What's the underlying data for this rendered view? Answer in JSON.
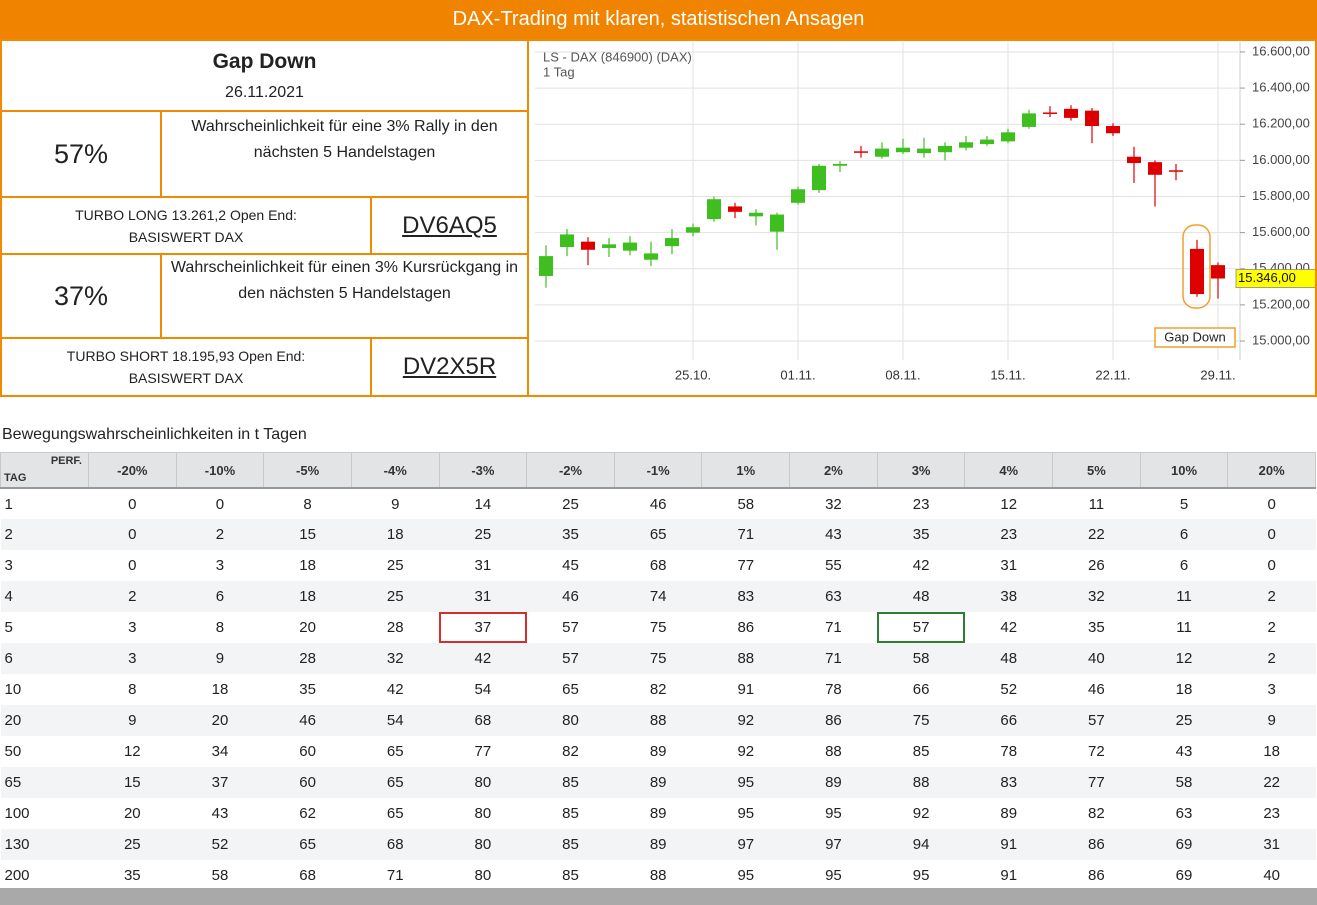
{
  "header": {
    "title": "DAX-Trading mit klaren, statistischen Ansagen"
  },
  "signal": {
    "title": "Gap Down",
    "date": "26.11.2021"
  },
  "long": {
    "probability": "57%",
    "description": "Wahrscheinlichkeit für eine 3% Rally in den nächsten 5 Handelstagen",
    "product": "TURBO LONG 13.261,2 Open End:",
    "underlying": "BASISWERT DAX",
    "code": "DV6AQ5"
  },
  "short": {
    "probability": "37%",
    "description": "Wahrscheinlichkeit für einen 3% Kursrückgang in den nächsten 5 Handelstagen",
    "product": "TURBO SHORT 18.195,93 Open End:",
    "underlying": "BASISWERT DAX",
    "code": "DV2X5R"
  },
  "chart_data": {
    "type": "candlestick",
    "title": "LS - DAX (846900) (DAX)",
    "subtitle": "1 Tag",
    "categories": [
      null,
      null,
      null,
      null,
      null,
      null,
      null,
      "25.10.",
      null,
      null,
      null,
      null,
      "01.11.",
      null,
      null,
      null,
      null,
      "08.11.",
      null,
      null,
      null,
      null,
      "15.11.",
      null,
      null,
      null,
      null,
      "22.11.",
      null,
      null,
      null,
      null,
      "29.11."
    ],
    "open": [
      15360,
      15520,
      15550,
      15515,
      15500,
      15450,
      15525,
      15600,
      15675,
      15745,
      15690,
      15605,
      15765,
      15835,
      15970,
      16050,
      16020,
      16045,
      16040,
      16045,
      16070,
      16090,
      16105,
      16185,
      16265,
      16285,
      16275,
      16190,
      16020,
      15990,
      15945,
      15510,
      15420
    ],
    "high": [
      15530,
      15620,
      15575,
      15570,
      15580,
      15550,
      15620,
      15650,
      15800,
      15765,
      15730,
      15710,
      15855,
      15980,
      15995,
      16080,
      16100,
      16120,
      16125,
      16100,
      16135,
      16135,
      16175,
      16280,
      16300,
      16305,
      16290,
      16205,
      16075,
      16000,
      15980,
      15560,
      15435
    ],
    "low": [
      15295,
      15470,
      15420,
      15465,
      15475,
      15415,
      15480,
      15580,
      15660,
      15680,
      15640,
      15505,
      15755,
      15820,
      15935,
      16015,
      16010,
      16035,
      16015,
      16000,
      16055,
      16080,
      16095,
      16175,
      16240,
      16220,
      16095,
      16135,
      15875,
      15745,
      15890,
      15245,
      15235
    ],
    "close": [
      15470,
      15590,
      15505,
      15535,
      15545,
      15485,
      15570,
      15630,
      15785,
      15715,
      15710,
      15700,
      15840,
      15970,
      15980,
      16045,
      16065,
      16070,
      16065,
      16080,
      16100,
      16115,
      16155,
      16260,
      16260,
      16235,
      16190,
      16150,
      15985,
      15920,
      15940,
      15260,
      15346
    ],
    "up_color": "#3fbf1f",
    "down_color": "#dd0000",
    "ylim": [
      14895,
      16655
    ],
    "yticks": [
      {
        "value": 15000,
        "label": "15.000,00"
      },
      {
        "value": 15200,
        "label": "15.200,00"
      },
      {
        "value": 15400,
        "label": "15.400,00"
      },
      {
        "value": 15600,
        "label": "15.600,00"
      },
      {
        "value": 15800,
        "label": "15.800,00"
      },
      {
        "value": 16000,
        "label": "16.000,00"
      },
      {
        "value": 16200,
        "label": "16.200,00"
      },
      {
        "value": 16400,
        "label": "16.400,00"
      },
      {
        "value": 16600,
        "label": "16.600,00"
      }
    ],
    "grid": true,
    "last_price": {
      "value": 15346,
      "label": "15.346,00"
    },
    "annotation": "Gap Down"
  },
  "table": {
    "title": "Bewegungswahrscheinlichkeiten in t Tagen",
    "corner_top": "PERF.",
    "corner_bottom": "TAG",
    "columns": [
      "-20%",
      "-10%",
      "-5%",
      "-4%",
      "-3%",
      "-2%",
      "-1%",
      "1%",
      "2%",
      "3%",
      "4%",
      "5%",
      "10%",
      "20%"
    ],
    "rows": [
      {
        "tag": 1,
        "values": [
          0,
          0,
          8,
          9,
          14,
          25,
          46,
          58,
          32,
          23,
          12,
          11,
          5,
          0
        ]
      },
      {
        "tag": 2,
        "values": [
          0,
          2,
          15,
          18,
          25,
          35,
          65,
          71,
          43,
          35,
          23,
          22,
          6,
          0
        ]
      },
      {
        "tag": 3,
        "values": [
          0,
          3,
          18,
          25,
          31,
          45,
          68,
          77,
          55,
          42,
          31,
          26,
          6,
          0
        ]
      },
      {
        "tag": 4,
        "values": [
          2,
          6,
          18,
          25,
          31,
          46,
          74,
          83,
          63,
          48,
          38,
          32,
          11,
          2
        ]
      },
      {
        "tag": 5,
        "values": [
          3,
          8,
          20,
          28,
          37,
          57,
          75,
          86,
          71,
          57,
          42,
          35,
          11,
          2
        ]
      },
      {
        "tag": 6,
        "values": [
          3,
          9,
          28,
          32,
          42,
          57,
          75,
          88,
          71,
          58,
          48,
          40,
          12,
          2
        ]
      },
      {
        "tag": 10,
        "values": [
          8,
          18,
          35,
          42,
          54,
          65,
          82,
          91,
          78,
          66,
          52,
          46,
          18,
          3
        ]
      },
      {
        "tag": 20,
        "values": [
          9,
          20,
          46,
          54,
          68,
          80,
          88,
          92,
          86,
          75,
          66,
          57,
          25,
          9
        ]
      },
      {
        "tag": 50,
        "values": [
          12,
          34,
          60,
          65,
          77,
          82,
          89,
          92,
          88,
          85,
          78,
          72,
          43,
          18
        ]
      },
      {
        "tag": 65,
        "values": [
          15,
          37,
          60,
          65,
          80,
          85,
          89,
          95,
          89,
          88,
          83,
          77,
          58,
          22
        ]
      },
      {
        "tag": 100,
        "values": [
          20,
          43,
          62,
          65,
          80,
          85,
          89,
          95,
          95,
          92,
          89,
          82,
          63,
          23
        ]
      },
      {
        "tag": 130,
        "values": [
          25,
          52,
          65,
          68,
          80,
          85,
          89,
          97,
          97,
          94,
          91,
          86,
          69,
          31
        ]
      },
      {
        "tag": 200,
        "values": [
          35,
          58,
          68,
          71,
          80,
          85,
          88,
          95,
          95,
          95,
          91,
          86,
          69,
          40
        ]
      }
    ],
    "highlights": [
      {
        "row": 4,
        "column": 4,
        "color": "#d32f2f"
      },
      {
        "row": 4,
        "column": 9,
        "color": "#2e7d32"
      }
    ]
  }
}
